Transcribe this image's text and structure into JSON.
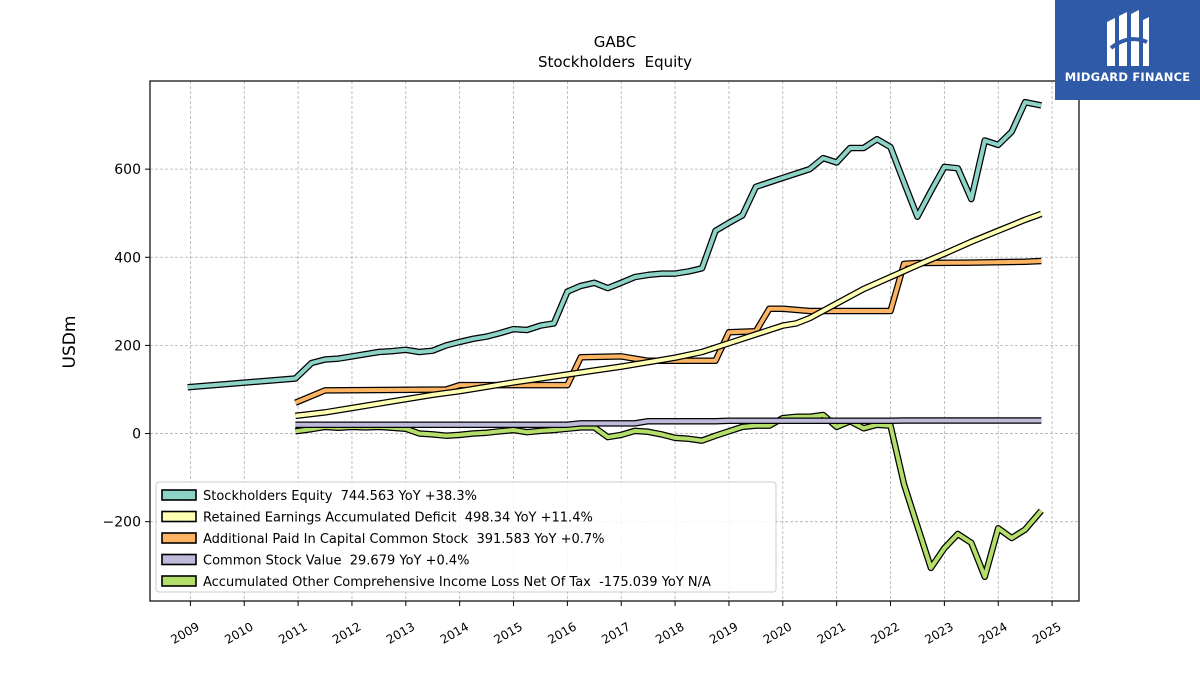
{
  "chart_data": {
    "type": "line",
    "title": "GABC",
    "subtitle": "Stockholders  Equity",
    "ylabel": "USDm",
    "xlabel": "",
    "ylim": [
      -380,
      800
    ],
    "xlim": [
      2008.25,
      2025.5
    ],
    "yticks": [
      -200,
      0,
      200,
      400,
      600
    ],
    "ytick_labels": [
      "−200",
      "0",
      "200",
      "400",
      "600"
    ],
    "xticks": [
      2009,
      2010,
      2011,
      2012,
      2013,
      2014,
      2015,
      2016,
      2017,
      2018,
      2019,
      2020,
      2021,
      2022,
      2023,
      2024,
      2025
    ],
    "grid": true,
    "legend_position": "lower-left",
    "series": [
      {
        "name": "Stockholders Equity",
        "legend_label": "Stockholders Equity  744.563 YoY +38.3%",
        "color": "#8dd3c7",
        "x": [
          2008.95,
          2010.95,
          2011.25,
          2011.5,
          2011.75,
          2012.0,
          2012.25,
          2012.5,
          2012.75,
          2013.0,
          2013.25,
          2013.5,
          2013.75,
          2014.0,
          2014.25,
          2014.5,
          2014.75,
          2015.0,
          2015.25,
          2015.5,
          2015.75,
          2016.0,
          2016.25,
          2016.5,
          2016.75,
          2017.0,
          2017.25,
          2017.5,
          2017.75,
          2018.0,
          2018.25,
          2018.5,
          2018.75,
          2019.0,
          2019.25,
          2019.5,
          2019.75,
          2020.0,
          2020.25,
          2020.5,
          2020.75,
          2021.0,
          2021.25,
          2021.5,
          2021.75,
          2022.0,
          2022.25,
          2022.5,
          2022.75,
          2023.0,
          2023.25,
          2023.5,
          2023.75,
          2024.0,
          2024.25,
          2024.5,
          2024.8
        ],
        "values": [
          105,
          125,
          160,
          168,
          170,
          175,
          180,
          185,
          187,
          190,
          185,
          188,
          200,
          208,
          215,
          220,
          228,
          237,
          235,
          245,
          250,
          322,
          335,
          342,
          330,
          342,
          355,
          360,
          363,
          363,
          368,
          375,
          460,
          478,
          495,
          560,
          570,
          580,
          590,
          600,
          625,
          615,
          648,
          648,
          668,
          650,
          570,
          492,
          550,
          605,
          602,
          532,
          665,
          655,
          685,
          752,
          744.563
        ]
      },
      {
        "name": "Retained Earnings Accumulated Deficit",
        "legend_label": "Retained Earnings Accumulated Deficit  498.34 YoY +11.4%",
        "color": "#ffffb3",
        "x": [
          2010.95,
          2011.5,
          2012.0,
          2012.5,
          2013.0,
          2013.5,
          2014.0,
          2014.5,
          2015.0,
          2015.5,
          2016.0,
          2016.5,
          2017.0,
          2017.5,
          2018.0,
          2018.5,
          2019.0,
          2019.5,
          2020.0,
          2020.25,
          2020.5,
          2021.0,
          2021.5,
          2022.0,
          2022.5,
          2023.0,
          2023.5,
          2024.0,
          2024.5,
          2024.8
        ],
        "values": [
          40,
          48,
          58,
          68,
          78,
          88,
          96,
          106,
          116,
          125,
          134,
          143,
          152,
          162,
          172,
          185,
          205,
          225,
          245,
          250,
          262,
          295,
          328,
          355,
          382,
          408,
          435,
          460,
          485,
          498.34
        ]
      },
      {
        "name": "Additional Paid In Capital Common Stock",
        "legend_label": "Additional Paid In Capital Common Stock  391.583 YoY +0.7%",
        "color": "#fdb462",
        "x": [
          2010.95,
          2011.5,
          2013.75,
          2014.0,
          2016.0,
          2016.25,
          2017.0,
          2017.5,
          2018.75,
          2019.0,
          2019.5,
          2019.75,
          2020.0,
          2020.5,
          2022.0,
          2022.25,
          2022.5,
          2023.5,
          2024.5,
          2024.8
        ],
        "values": [
          70,
          98,
          100,
          110,
          110,
          173,
          175,
          165,
          165,
          230,
          232,
          283,
          283,
          278,
          278,
          385,
          387,
          388,
          390,
          391.583
        ]
      },
      {
        "name": "Common Stock Value",
        "legend_label": "Common Stock Value  29.679 YoY +0.4%",
        "color": "#bebada",
        "x": [
          2010.95,
          2016.0,
          2016.25,
          2017.25,
          2017.5,
          2018.75,
          2019.0,
          2019.75,
          2020.0,
          2022.0,
          2022.25,
          2024.8
        ],
        "values": [
          20,
          20,
          23,
          23,
          28,
          28,
          29,
          29,
          29,
          29,
          29.5,
          29.679
        ]
      },
      {
        "name": "Accumulated Other Comprehensive Income Loss Net Of Tax",
        "legend_label": "Accumulated Other Comprehensive Income Loss Net Of Tax  -175.039 YoY N/A",
        "color": "#b3de69",
        "x": [
          2010.95,
          2011.25,
          2011.5,
          2011.75,
          2012.0,
          2012.25,
          2012.5,
          2012.75,
          2013.0,
          2013.25,
          2013.5,
          2013.75,
          2014.0,
          2014.25,
          2014.5,
          2014.75,
          2015.0,
          2015.25,
          2015.5,
          2015.75,
          2016.0,
          2016.25,
          2016.5,
          2016.75,
          2017.0,
          2017.25,
          2017.5,
          2017.75,
          2018.0,
          2018.25,
          2018.5,
          2018.75,
          2019.0,
          2019.25,
          2019.5,
          2019.75,
          2020.0,
          2020.25,
          2020.5,
          2020.75,
          2021.0,
          2021.25,
          2021.5,
          2021.75,
          2022.0,
          2022.25,
          2022.5,
          2022.75,
          2023.0,
          2023.25,
          2023.5,
          2023.75,
          2024.0,
          2024.25,
          2024.5,
          2024.8
        ],
        "values": [
          5,
          10,
          15,
          13,
          15,
          14,
          15,
          13,
          11,
          0,
          -2,
          -5,
          -3,
          0,
          2,
          5,
          8,
          3,
          6,
          8,
          11,
          14,
          14,
          -8,
          -3,
          6,
          4,
          -2,
          -10,
          -12,
          -16,
          -5,
          5,
          15,
          18,
          18,
          35,
          38,
          38,
          42,
          15,
          28,
          12,
          20,
          18,
          -115,
          -210,
          -305,
          -260,
          -228,
          -248,
          -325,
          -215,
          -237,
          -218,
          -175.039
        ]
      }
    ]
  },
  "logo": {
    "text": "MIDGARD FINANCE",
    "icon": "midgard-logo-icon"
  }
}
